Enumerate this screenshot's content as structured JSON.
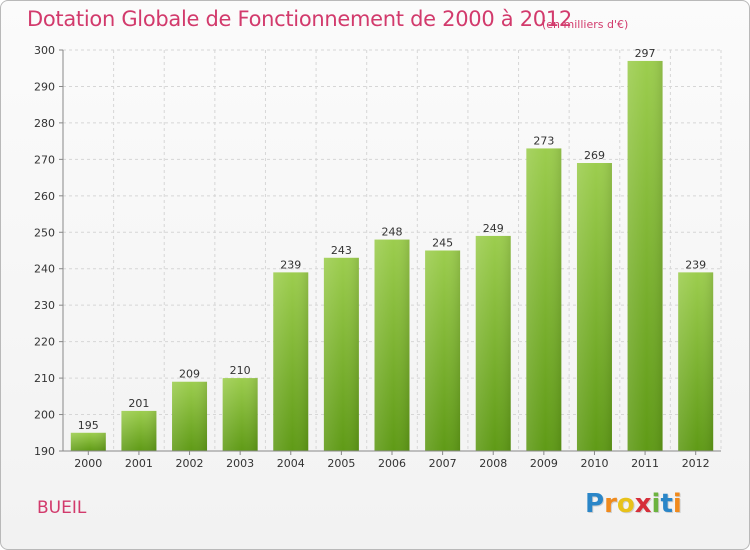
{
  "header": {
    "title": "Dotation Globale de Fonctionnement de 2000 à 2012",
    "subtitle": "(en milliers d'€)"
  },
  "commune": "BUEIL",
  "logo": {
    "text": [
      "P",
      "r",
      "o",
      "x",
      "i",
      "t",
      "i"
    ]
  },
  "colors": {
    "bar_top": "#9ccd4e",
    "bar_bottom": "#5f9a16",
    "title": "#d23a6c"
  },
  "chart_data": {
    "type": "bar",
    "title": "Dotation Globale de Fonctionnement de 2000 à 2012",
    "subtitle": "(en milliers d'€)",
    "categories": [
      "2000",
      "2001",
      "2002",
      "2003",
      "2004",
      "2005",
      "2006",
      "2007",
      "2008",
      "2009",
      "2010",
      "2011",
      "2012"
    ],
    "values": [
      195,
      201,
      209,
      210,
      239,
      243,
      248,
      245,
      249,
      273,
      269,
      297,
      239
    ],
    "ylim": [
      190,
      300
    ],
    "yticks": [
      190,
      200,
      210,
      220,
      230,
      240,
      250,
      260,
      270,
      280,
      290,
      300
    ],
    "grid": true,
    "legend": "none",
    "xlabel": "",
    "ylabel": ""
  }
}
